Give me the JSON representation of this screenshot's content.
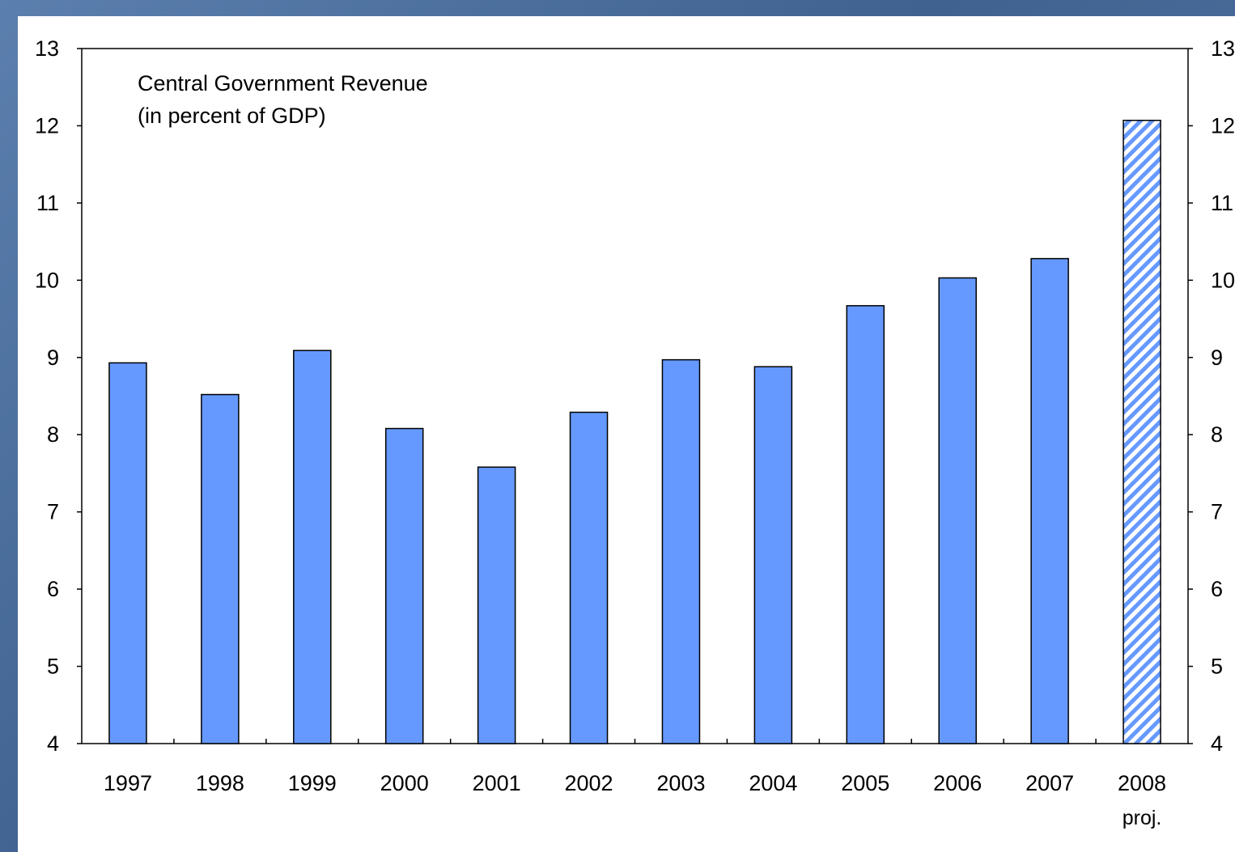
{
  "chart_data": {
    "type": "bar",
    "title_lines": [
      "Central Government Revenue",
      "(in percent of GDP)"
    ],
    "categories": [
      "1997",
      "1998",
      "1999",
      "2000",
      "2001",
      "2002",
      "2003",
      "2004",
      "2005",
      "2006",
      "2007",
      "2008"
    ],
    "category_annotations": [
      "",
      "",
      "",
      "",
      "",
      "",
      "",
      "",
      "",
      "",
      "",
      "proj."
    ],
    "series": [
      {
        "values": [
          8.93,
          8.52,
          9.09,
          8.08,
          7.58,
          8.29,
          8.97,
          8.88,
          9.67,
          10.03,
          10.28,
          12.07
        ],
        "projected": [
          false,
          false,
          false,
          false,
          false,
          false,
          false,
          false,
          false,
          false,
          false,
          true
        ]
      }
    ],
    "ylim": [
      4,
      13
    ],
    "yticks": [
      4,
      5,
      6,
      7,
      8,
      9,
      10,
      11,
      12,
      13
    ],
    "secondary_y_axis": true,
    "grid": false,
    "colors": {
      "bar": "#6699ff",
      "bar_outline": "#000000",
      "projection_hatch": "#6699ff",
      "background_frame": "#4a6d9a"
    }
  }
}
